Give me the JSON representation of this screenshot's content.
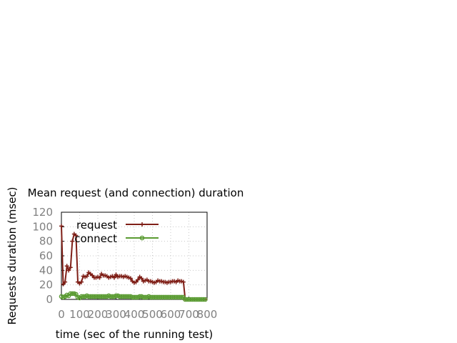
{
  "chart_data": {
    "type": "line",
    "title": "Mean request (and connection) duration",
    "xlabel": "time (sec of the running test)",
    "ylabel": "Requests duration (msec)",
    "xlim": [
      0,
      800
    ],
    "ylim": [
      0,
      120
    ],
    "xticks": [
      "0",
      "100",
      "200",
      "300",
      "400",
      "500",
      "600",
      "700",
      "800"
    ],
    "yticks": [
      "0",
      "20",
      "40",
      "60",
      "80",
      "100",
      "120"
    ],
    "grid": true,
    "legend_position": "top-left",
    "series": [
      {
        "name": "request",
        "color": "#7f1f17",
        "marker": "plus",
        "x": [
          0,
          10,
          20,
          30,
          40,
          50,
          60,
          70,
          80,
          90,
          100,
          110,
          120,
          130,
          140,
          150,
          160,
          170,
          180,
          190,
          200,
          210,
          220,
          230,
          240,
          250,
          260,
          270,
          280,
          290,
          300,
          310,
          320,
          330,
          340,
          350,
          360,
          370,
          380,
          390,
          400,
          410,
          420,
          430,
          440,
          450,
          460,
          470,
          480,
          490,
          500,
          510,
          520,
          530,
          540,
          550,
          560,
          570,
          580,
          590,
          600,
          610,
          620,
          630,
          640,
          650,
          660,
          670,
          680,
          690,
          700,
          710,
          720,
          730,
          740,
          750,
          760,
          770,
          780,
          790
        ],
        "y": [
          101,
          21,
          24,
          46,
          40,
          44,
          80,
          90,
          88,
          24,
          22,
          24,
          32,
          31,
          32,
          37,
          35,
          33,
          30,
          30,
          31,
          30,
          35,
          33,
          33,
          32,
          30,
          31,
          32,
          30,
          34,
          31,
          32,
          32,
          31,
          32,
          31,
          30,
          29,
          25,
          23,
          24,
          27,
          31,
          29,
          25,
          26,
          27,
          25,
          25,
          24,
          23,
          24,
          26,
          25,
          25,
          24,
          24,
          23,
          24,
          24,
          25,
          25,
          24,
          26,
          25,
          25,
          24,
          0,
          0,
          0,
          0,
          0,
          0,
          0,
          0,
          0,
          0,
          0,
          0
        ]
      },
      {
        "name": "connect",
        "color": "#5a9b32",
        "marker": "circle",
        "x": [
          0,
          10,
          20,
          30,
          40,
          50,
          60,
          70,
          80,
          90,
          100,
          110,
          120,
          130,
          140,
          150,
          160,
          170,
          180,
          190,
          200,
          210,
          220,
          230,
          240,
          250,
          260,
          270,
          280,
          290,
          300,
          310,
          320,
          330,
          340,
          350,
          360,
          370,
          380,
          390,
          400,
          410,
          420,
          430,
          440,
          450,
          460,
          470,
          480,
          490,
          500,
          510,
          520,
          530,
          540,
          550,
          560,
          570,
          580,
          590,
          600,
          610,
          620,
          630,
          640,
          650,
          660,
          670,
          680,
          690,
          700,
          710,
          720,
          730,
          740,
          750,
          760,
          770,
          780,
          790
        ],
        "y": [
          4,
          3,
          4,
          6,
          5,
          8,
          8,
          8,
          7,
          3,
          2,
          4,
          4,
          4,
          5,
          4,
          4,
          4,
          4,
          4,
          4,
          4,
          4,
          4,
          4,
          4,
          5,
          4,
          4,
          4,
          5,
          5,
          4,
          4,
          4,
          4,
          4,
          4,
          4,
          3,
          3,
          3,
          3,
          4,
          4,
          3,
          3,
          3,
          4,
          3,
          3,
          3,
          3,
          3,
          3,
          3,
          3,
          3,
          3,
          3,
          3,
          3,
          3,
          3,
          3,
          3,
          3,
          3,
          0,
          0,
          0,
          0,
          0,
          0,
          0,
          0,
          0,
          0,
          0,
          0
        ]
      }
    ]
  }
}
